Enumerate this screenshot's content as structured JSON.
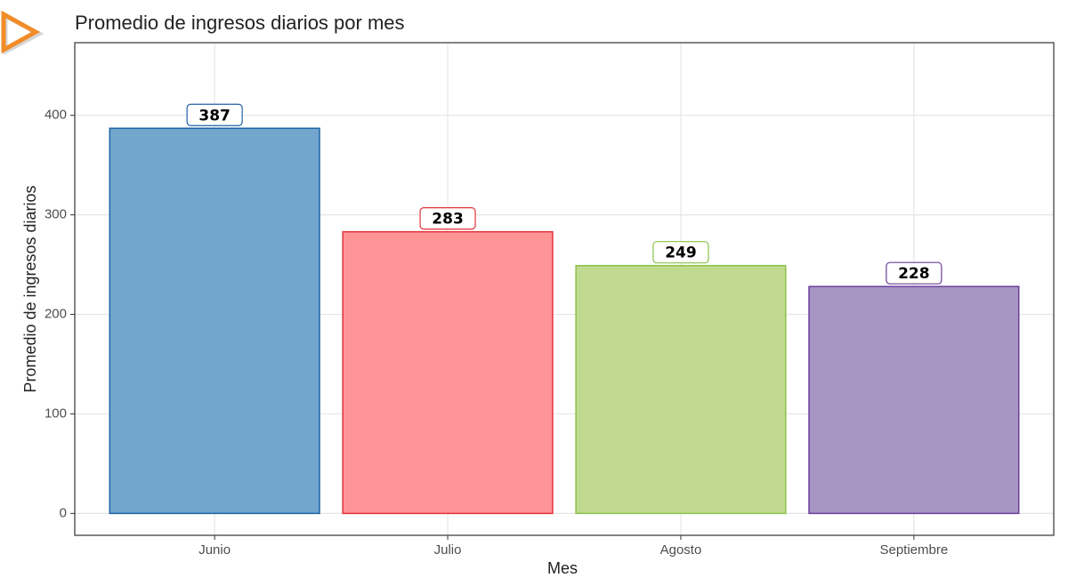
{
  "chart_data": {
    "type": "bar",
    "title": "Promedio de ingresos diarios por mes",
    "x_label": "Mes",
    "y_label": "Promedio de ingresos diarios",
    "categories": [
      "Junio",
      "Julio",
      "Agosto",
      "Septiembre"
    ],
    "values": [
      387,
      283,
      249,
      228
    ],
    "colors": [
      "#1f63a6",
      "#e3323a",
      "#8bc34a",
      "#6a3d9a"
    ],
    "fill_colors": [
      "#73a6cc",
      "#ff9497",
      "#c0da8f",
      "#a796c4"
    ],
    "ylim": [
      -22,
      473
    ],
    "yticks": [
      0,
      100,
      200,
      300,
      400
    ],
    "grid": true
  }
}
